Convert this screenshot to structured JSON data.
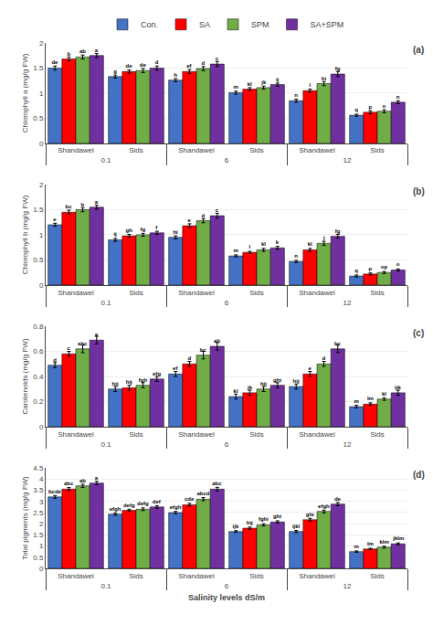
{
  "chart_data": [
    {
      "type": "bar",
      "title": "(a)",
      "ylabel": "Chlorophyll a (mg/g FW)",
      "categories": [
        "Shandawel",
        "Sids",
        "Shandawel",
        "Sids",
        "Shandawel",
        "Sids"
      ],
      "salinity_levels": [
        "0.1",
        "6",
        "12"
      ],
      "series": [
        {
          "name": "Con.",
          "color": "#4472C4",
          "values": [
            1.5,
            1.33,
            1.26,
            1.01,
            0.85,
            0.56
          ],
          "error": [
            0.04,
            0.03,
            0.03,
            0.03,
            0.03,
            0.02
          ],
          "labels": [
            "de",
            "g",
            "h",
            "m",
            "n",
            "q"
          ]
        },
        {
          "name": "SA",
          "color": "#FF0000",
          "values": [
            1.68,
            1.43,
            1.43,
            1.08,
            1.05,
            0.62
          ],
          "error": [
            0.04,
            0.03,
            0.04,
            0.03,
            0.03,
            0.03
          ],
          "labels": [
            "b",
            "de",
            "ef",
            "kl",
            "l",
            "p"
          ]
        },
        {
          "name": "SPM",
          "color": "#70AD47",
          "values": [
            1.72,
            1.45,
            1.49,
            1.11,
            1.19,
            0.64
          ],
          "error": [
            0.04,
            0.04,
            0.04,
            0.03,
            0.04,
            0.03
          ],
          "labels": [
            "ab",
            "de",
            "d",
            "jk",
            "hi",
            "o"
          ]
        },
        {
          "name": "SA+SPM",
          "color": "#7030A0",
          "values": [
            1.75,
            1.5,
            1.58,
            1.17,
            1.38,
            0.82
          ],
          "error": [
            0.04,
            0.04,
            0.05,
            0.03,
            0.05,
            0.03
          ],
          "labels": [
            "a",
            "d",
            "c",
            "ij",
            "fg",
            "n"
          ]
        }
      ],
      "ylim": [
        0,
        2.0
      ],
      "yticks": [
        0,
        0.5,
        1.0,
        1.5,
        2.0
      ],
      "grid": true,
      "legend": "top"
    },
    {
      "type": "bar",
      "title": "(b)",
      "ylabel": "Chlorophyll b (mg/g FW)",
      "categories": [
        "Shandawel",
        "Sids",
        "Shandawel",
        "Sids",
        "Shandawel",
        "Sids"
      ],
      "salinity_levels": [
        "0.1",
        "6",
        "12"
      ],
      "series": [
        {
          "name": "Con.",
          "color": "#4472C4",
          "values": [
            1.2,
            0.9,
            0.95,
            0.58,
            0.47,
            0.18
          ],
          "error": [
            0.03,
            0.03,
            0.03,
            0.02,
            0.02,
            0.02
          ],
          "labels": [
            "e",
            "ij",
            "hi",
            "m",
            "n",
            "q"
          ]
        },
        {
          "name": "SA",
          "color": "#FF0000",
          "values": [
            1.45,
            0.98,
            1.18,
            0.65,
            0.7,
            0.22
          ],
          "error": [
            0.04,
            0.03,
            0.04,
            0.02,
            0.03,
            0.02
          ],
          "labels": [
            "bc",
            "gh",
            "e",
            "l",
            "kl",
            "p"
          ]
        },
        {
          "name": "SPM",
          "color": "#70AD47",
          "values": [
            1.5,
            1.0,
            1.28,
            0.7,
            0.83,
            0.25
          ],
          "error": [
            0.04,
            0.03,
            0.04,
            0.03,
            0.04,
            0.02
          ],
          "labels": [
            "b",
            "fg",
            "d",
            "kl",
            "j",
            "op"
          ]
        },
        {
          "name": "SA+SPM",
          "color": "#7030A0",
          "values": [
            1.55,
            1.04,
            1.38,
            0.74,
            0.97,
            0.3
          ],
          "error": [
            0.04,
            0.03,
            0.05,
            0.03,
            0.04,
            0.02
          ],
          "labels": [
            "a",
            "f",
            "c",
            "k",
            "fg",
            "o"
          ]
        }
      ],
      "ylim": [
        0,
        2.0
      ],
      "yticks": [
        0,
        0.5,
        1.0,
        1.5,
        2.0
      ],
      "grid": true
    },
    {
      "type": "bar",
      "title": "(c)",
      "ylabel": "Carotenoids (mg/g FW)",
      "categories": [
        "Shandawel",
        "Sids",
        "Shandawel",
        "Sids",
        "Shandawel",
        "Sids"
      ],
      "salinity_levels": [
        "0.1",
        "6",
        "12"
      ],
      "series": [
        {
          "name": "Con.",
          "color": "#4472C4",
          "values": [
            0.49,
            0.3,
            0.42,
            0.24,
            0.32,
            0.16
          ],
          "error": [
            0.02,
            0.02,
            0.02,
            0.02,
            0.02,
            0.01
          ],
          "labels": [
            "d",
            "hij",
            "ef",
            "kl",
            "hij",
            "m"
          ]
        },
        {
          "name": "SA",
          "color": "#FF0000",
          "values": [
            0.58,
            0.31,
            0.5,
            0.27,
            0.42,
            0.18
          ],
          "error": [
            0.02,
            0.02,
            0.02,
            0.02,
            0.02,
            0.01
          ],
          "labels": [
            "c",
            "hij",
            "d",
            "jk",
            "e",
            "lm"
          ]
        },
        {
          "name": "SPM",
          "color": "#70AD47",
          "values": [
            0.62,
            0.33,
            0.57,
            0.3,
            0.5,
            0.22
          ],
          "error": [
            0.03,
            0.02,
            0.03,
            0.02,
            0.02,
            0.01
          ],
          "labels": [
            "abc",
            "fgh",
            "bc",
            "hij",
            "d",
            "kl"
          ]
        },
        {
          "name": "SA+SPM",
          "color": "#7030A0",
          "values": [
            0.69,
            0.38,
            0.64,
            0.33,
            0.62,
            0.27
          ],
          "error": [
            0.03,
            0.02,
            0.03,
            0.02,
            0.03,
            0.02
          ],
          "labels": [
            "a",
            "efg",
            "ab",
            "ghi",
            "bc",
            "ijk"
          ]
        }
      ],
      "ylim": [
        0,
        0.8
      ],
      "yticks": [
        0,
        0.2,
        0.4,
        0.6,
        0.8
      ],
      "grid": true
    },
    {
      "type": "bar",
      "title": "(d)",
      "ylabel": "Total pigments (mg/g FW)",
      "xlabel": "Salinity levels dS/m",
      "categories": [
        "Shandawel",
        "Sids",
        "Shandawel",
        "Sids",
        "Shandawel",
        "Sids"
      ],
      "salinity_levels": [
        "0.1",
        "6",
        "12"
      ],
      "series": [
        {
          "name": "Con.",
          "color": "#4472C4",
          "values": [
            3.2,
            2.43,
            2.5,
            1.65,
            1.65,
            0.75
          ],
          "error": [
            0.06,
            0.05,
            0.05,
            0.04,
            0.05,
            0.03
          ],
          "labels": [
            "bcde",
            "efgh",
            "efgh",
            "ijk",
            "ijkl",
            "m"
          ]
        },
        {
          "name": "SA",
          "color": "#FF0000",
          "values": [
            3.55,
            2.6,
            2.85,
            1.8,
            2.18,
            0.87
          ],
          "error": [
            0.07,
            0.05,
            0.06,
            0.05,
            0.06,
            0.03
          ],
          "labels": [
            "abc",
            "defg",
            "cde",
            "hij",
            "ghi",
            "lm"
          ]
        },
        {
          "name": "SPM",
          "color": "#70AD47",
          "values": [
            3.7,
            2.65,
            3.1,
            1.95,
            2.55,
            0.95
          ],
          "error": [
            0.07,
            0.06,
            0.07,
            0.05,
            0.06,
            0.04
          ],
          "labels": [
            "ab",
            "defg",
            "abcd",
            "fghi",
            "efgh",
            "klm"
          ]
        },
        {
          "name": "SA+SPM",
          "color": "#7030A0",
          "values": [
            3.82,
            2.75,
            3.55,
            2.08,
            2.88,
            1.1
          ],
          "error": [
            0.08,
            0.06,
            0.08,
            0.05,
            0.07,
            0.04
          ],
          "labels": [
            "a",
            "def",
            "abc",
            "ghi",
            "de",
            "jklm"
          ]
        }
      ],
      "ylim": [
        0,
        4.5
      ],
      "yticks": [
        0,
        0.5,
        1.0,
        1.5,
        2.0,
        2.5,
        3.0,
        3.5,
        4.0,
        4.5
      ],
      "grid": true
    }
  ]
}
